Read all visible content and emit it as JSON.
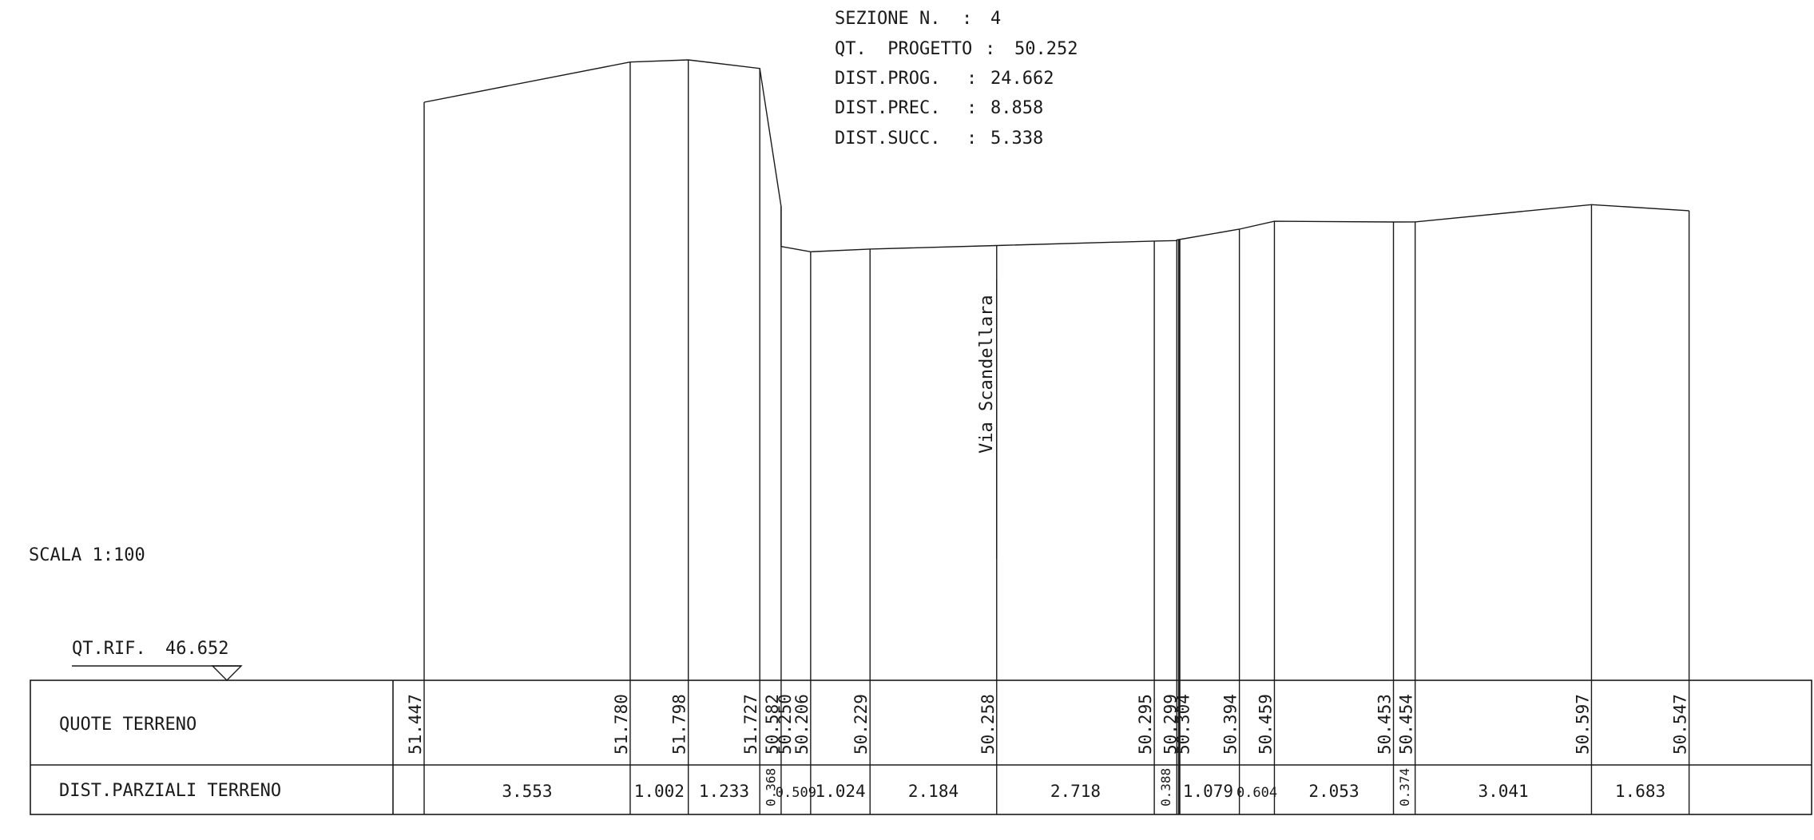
{
  "header": {
    "lines": [
      {
        "label": "SEZIONE N.",
        "value": "4"
      },
      {
        "label": "QT.  PROGETTO",
        "value": "50.252"
      },
      {
        "label": "DIST.PROG.",
        "value": "24.662"
      },
      {
        "label": "DIST.PREC.",
        "value": "8.858"
      },
      {
        "label": "DIST.SUCC.",
        "value": "5.338"
      }
    ]
  },
  "scale_label": "SCALA 1:100",
  "reference": {
    "label": "QT.RIF.",
    "value": "46.652"
  },
  "road_label": "Via Scandellara",
  "table": {
    "row1_label": "QUOTE TERRENO",
    "row2_label": "DIST.PARZIALI TERRENO"
  },
  "chart_data": {
    "type": "line",
    "title": "",
    "datum_elevation": 46.652,
    "partial_distances": [
      "3.553",
      "1.002",
      "1.233",
      "0.368",
      "0.509",
      "1.024",
      "2.184",
      "2.718",
      "0.388",
      "1.079",
      "0.604",
      "2.053",
      "0.374",
      "3.041",
      "1.683"
    ],
    "elevations": [
      "51.447",
      "51.780",
      "51.798",
      "51.727",
      "50.582",
      "50.250",
      "50.206",
      "50.229",
      "50.258",
      "50.295",
      "50.299",
      "50.304",
      "50.394",
      "50.459",
      "50.453",
      "50.454",
      "50.597",
      "50.547"
    ],
    "points": [
      {
        "x": 0.0,
        "y": 51.447
      },
      {
        "x": 3.553,
        "y": 51.78
      },
      {
        "x": 4.555,
        "y": 51.798
      },
      {
        "x": 5.788,
        "y": 51.727
      },
      {
        "x": 6.156,
        "y": 50.582
      },
      {
        "x": 6.156,
        "y": 50.25
      },
      {
        "x": 6.665,
        "y": 50.206
      },
      {
        "x": 7.689,
        "y": 50.229
      },
      {
        "x": 9.873,
        "y": 50.258
      },
      {
        "x": 12.591,
        "y": 50.295
      },
      {
        "x": 12.979,
        "y": 50.299
      },
      {
        "x": 12.979,
        "y": 50.304
      },
      {
        "x": 14.058,
        "y": 50.394
      },
      {
        "x": 14.662,
        "y": 50.459
      },
      {
        "x": 16.715,
        "y": 50.453
      },
      {
        "x": 17.089,
        "y": 50.454
      },
      {
        "x": 20.13,
        "y": 50.597
      },
      {
        "x": 21.813,
        "y": 50.547
      }
    ],
    "road_axis_x": 9.873
  }
}
